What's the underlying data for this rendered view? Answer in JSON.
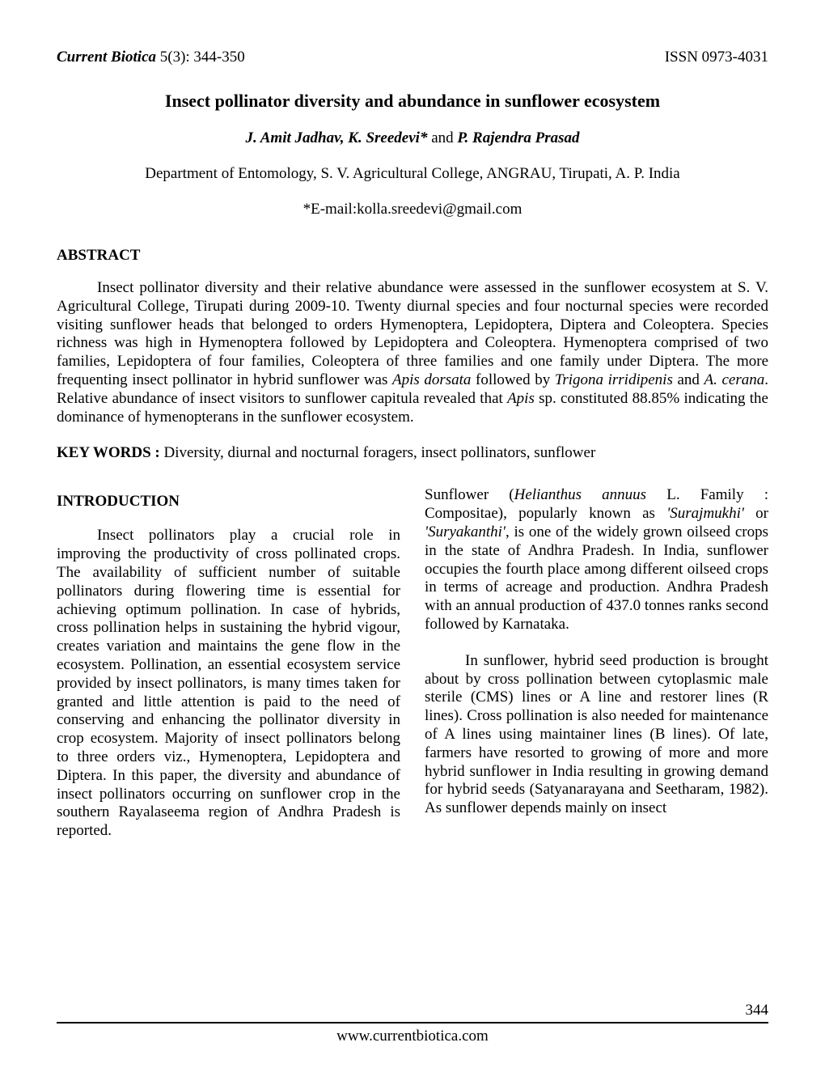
{
  "header": {
    "journal": "Current Biotica",
    "volume_issue": " 5(3): 344-350",
    "issn": "ISSN 0973-4031"
  },
  "article": {
    "title": "Insect pollinator diversity and abundance in sunflower ecosystem",
    "authors": {
      "a1": "J. Amit Jadhav, K. Sreedevi*",
      "and": " and ",
      "a2": "P. Rajendra Prasad"
    },
    "affiliation": "Department of Entomology, S. V. Agricultural College, ANGRAU, Tirupati, A. P. India",
    "email": "*E-mail:kolla.sreedevi@gmail.com",
    "abstract_heading": "ABSTRACT",
    "abstract_p1a": "Insect pollinator diversity and their relative abundance were assessed in the sunflower ecosystem at S. V. Agricultural College, Tirupati during 2009-10. Twenty diurnal species and four nocturnal species were recorded visiting sunflower heads that belonged to orders Hymenoptera, Lepidoptera, Diptera and Coleoptera. Species richness was high in Hymenoptera followed by Lepidoptera and Coleoptera. Hymenoptera comprised of two families, Lepidoptera of four families, Coleoptera of three families and one family under Diptera. The more frequenting insect pollinator in hybrid sunflower was ",
    "abstract_sp1": "Apis dorsata",
    "abstract_p1b": "  followed by ",
    "abstract_sp2": "Trigona irridipenis",
    "abstract_p1c": " and ",
    "abstract_sp3": "A. cerana",
    "abstract_p1d": ".  Relative abundance of insect visitors to sunflower capitula revealed that ",
    "abstract_sp4": "Apis",
    "abstract_p1e": " sp. constituted 88.85% indicating the dominance of hymenopterans in the sunflower ecosystem.",
    "keywords_label": "KEY WORDS : ",
    "keywords": "Diversity, diurnal and nocturnal foragers, insect pollinators, sunflower",
    "intro_heading": "INTRODUCTION",
    "left_col": "Insect pollinators play a crucial role in improving the productivity of cross pollinated crops. The availability of sufficient number of suitable pollinators during flowering time is essential for achieving optimum pollination. In case of hybrids, cross pollination helps in sustaining the hybrid vigour, creates variation and maintains the gene flow in the ecosystem. Pollination, an essential ecosystem service provided by insect pollinators, is many times taken for granted and little attention is paid to the need of conserving and enhancing the pollinator diversity in crop ecosystem. Majority of insect pollinators belong to three orders viz., Hymenoptera, Lepidoptera and Diptera. In this paper, the diversity and abundance of insect pollinators occurring on sunflower crop in the southern Rayalaseema region of Andhra Pradesh is reported.",
    "right_p1a": "Sunflower (",
    "right_sp1": "Helianthus annuus",
    "right_p1b": " L. Family : Compositae), popularly known as ",
    "right_it1": "'Surajmukhi'",
    "right_p1c": " or ",
    "right_it2": "'Suryakanthi'",
    "right_p1d": ", is one of the widely grown oilseed crops in the state of Andhra Pradesh. In India, sunflower occupies the fourth place among different oilseed crops in terms of acreage and production. Andhra Pradesh with an annual production of 437.0 tonnes ranks second followed by Karnataka.",
    "right_p2": "In sunflower, hybrid seed production is brought about by cross pollination between cytoplasmic male sterile (CMS) lines or A line and restorer lines (R lines). Cross pollination is also needed for maintenance of A lines using maintainer lines (B lines). Of late, farmers have resorted to growing of more and more hybrid sunflower in India resulting in growing demand for hybrid seeds (Satyanarayana and Seetharam, 1982). As sunflower depends mainly on insect"
  },
  "footer": {
    "page_number": "344",
    "url": "www.currentbiotica.com"
  }
}
